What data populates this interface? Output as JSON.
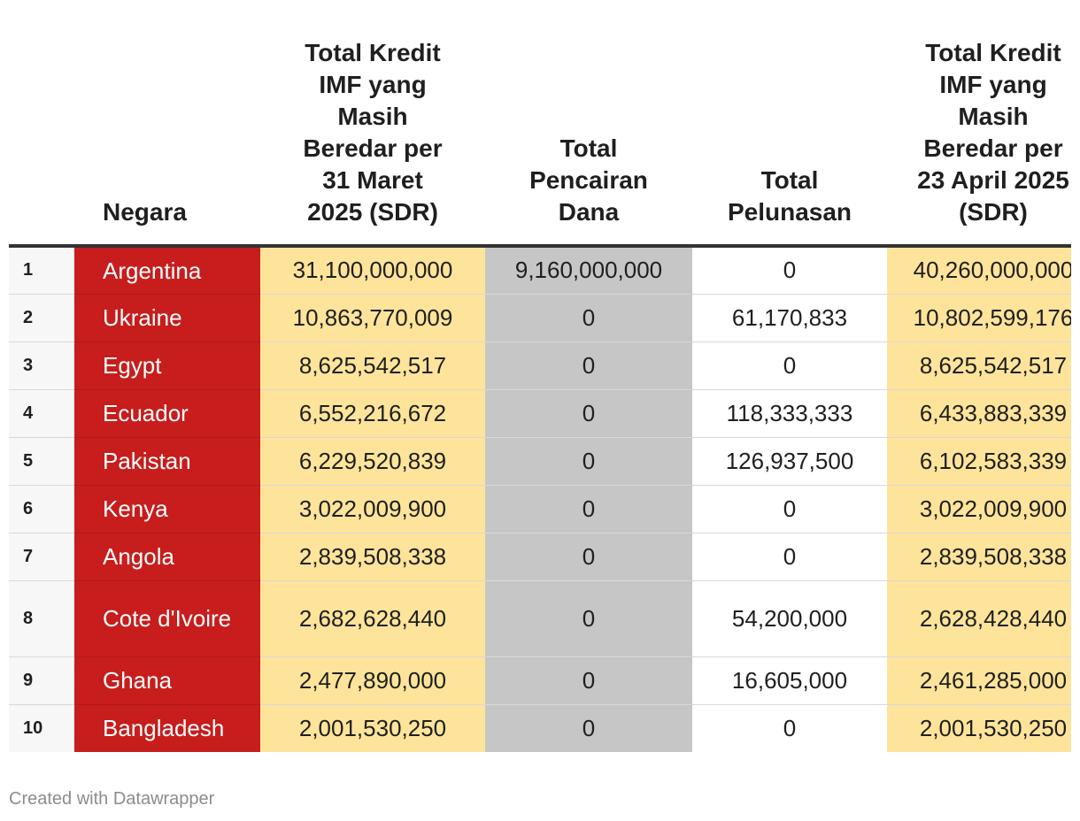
{
  "colors": {
    "country_bg": "#c71d1d",
    "highlight": "#fde49a",
    "grey": "#c6c6c6",
    "header_rule": "#333333"
  },
  "chart_data": {
    "type": "table",
    "columns": [
      "",
      "Negara",
      "Total Kredit IMF yang Masih Beredar per 31 Maret 2025 (SDR)",
      "Total Pencairan Dana",
      "Total Pelunasan",
      "Total Kredit IMF yang Masih Beredar per 23 April 2025 (SDR)"
    ],
    "rows": [
      [
        "1",
        "Argentina",
        "31,100,000,000",
        "9,160,000,000",
        "0",
        "40,260,000,000"
      ],
      [
        "2",
        "Ukraine",
        "10,863,770,009",
        "0",
        "61,170,833",
        "10,802,599,176"
      ],
      [
        "3",
        "Egypt",
        "8,625,542,517",
        "0",
        "0",
        "8,625,542,517"
      ],
      [
        "4",
        "Ecuador",
        "6,552,216,672",
        "0",
        "118,333,333",
        "6,433,883,339"
      ],
      [
        "5",
        "Pakistan",
        "6,229,520,839",
        "0",
        "126,937,500",
        "6,102,583,339"
      ],
      [
        "6",
        "Kenya",
        "3,022,009,900",
        "0",
        "0",
        "3,022,009,900"
      ],
      [
        "7",
        "Angola",
        "2,839,508,338",
        "0",
        "0",
        "2,839,508,338"
      ],
      [
        "8",
        "Cote d'Ivoire",
        "2,682,628,440",
        "0",
        "54,200,000",
        "2,628,428,440"
      ],
      [
        "9",
        "Ghana",
        "2,477,890,000",
        "0",
        "16,605,000",
        "2,461,285,000"
      ],
      [
        "10",
        "Bangladesh",
        "2,001,530,250",
        "0",
        "0",
        "2,001,530,250"
      ]
    ]
  },
  "footer": {
    "credit": "Created with Datawrapper"
  }
}
